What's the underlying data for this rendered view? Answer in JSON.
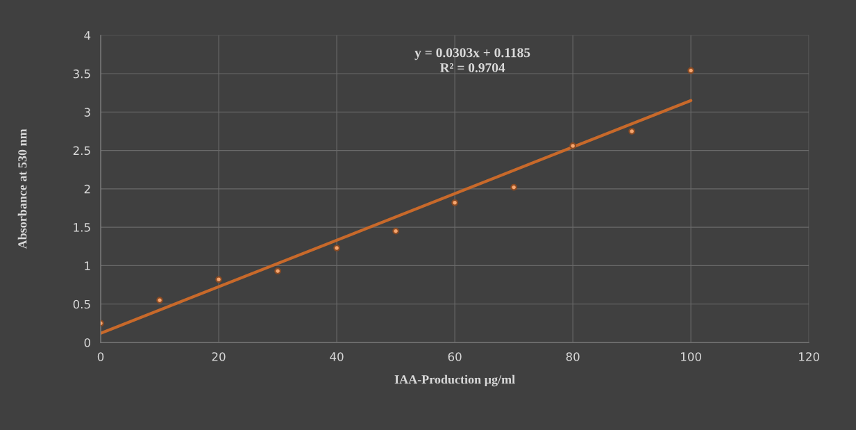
{
  "chart_data": {
    "type": "scatter",
    "xlabel": "IAA-Production µg/ml",
    "ylabel": "Absorbance at 530 nm",
    "annotations": [
      "y = 0.0303x + 0.1185\nR² = 0.9704"
    ],
    "x": [
      0,
      10,
      20,
      30,
      40,
      50,
      60,
      70,
      80,
      90,
      100
    ],
    "series": [
      {
        "color": "#f6a56e",
        "marker": "circle",
        "values": [
          0.25,
          0.55,
          0.82,
          0.93,
          1.23,
          1.45,
          1.82,
          2.02,
          2.56,
          2.75,
          3.54
        ]
      },
      {
        "type": "line",
        "color": "#c8692a",
        "marker": "none",
        "line_style": "solid",
        "x": [
          0,
          100
        ],
        "values": [
          0.12,
          3.15
        ]
      }
    ],
    "xlim": [
      0,
      120
    ],
    "xticks": [
      0,
      20,
      40,
      60,
      80,
      100,
      120
    ],
    "ylim": [
      0,
      4
    ],
    "yticks": [
      0,
      0.5,
      1,
      1.5,
      2,
      2.5,
      3,
      3.5,
      4
    ],
    "grid": true,
    "legend": false
  }
}
